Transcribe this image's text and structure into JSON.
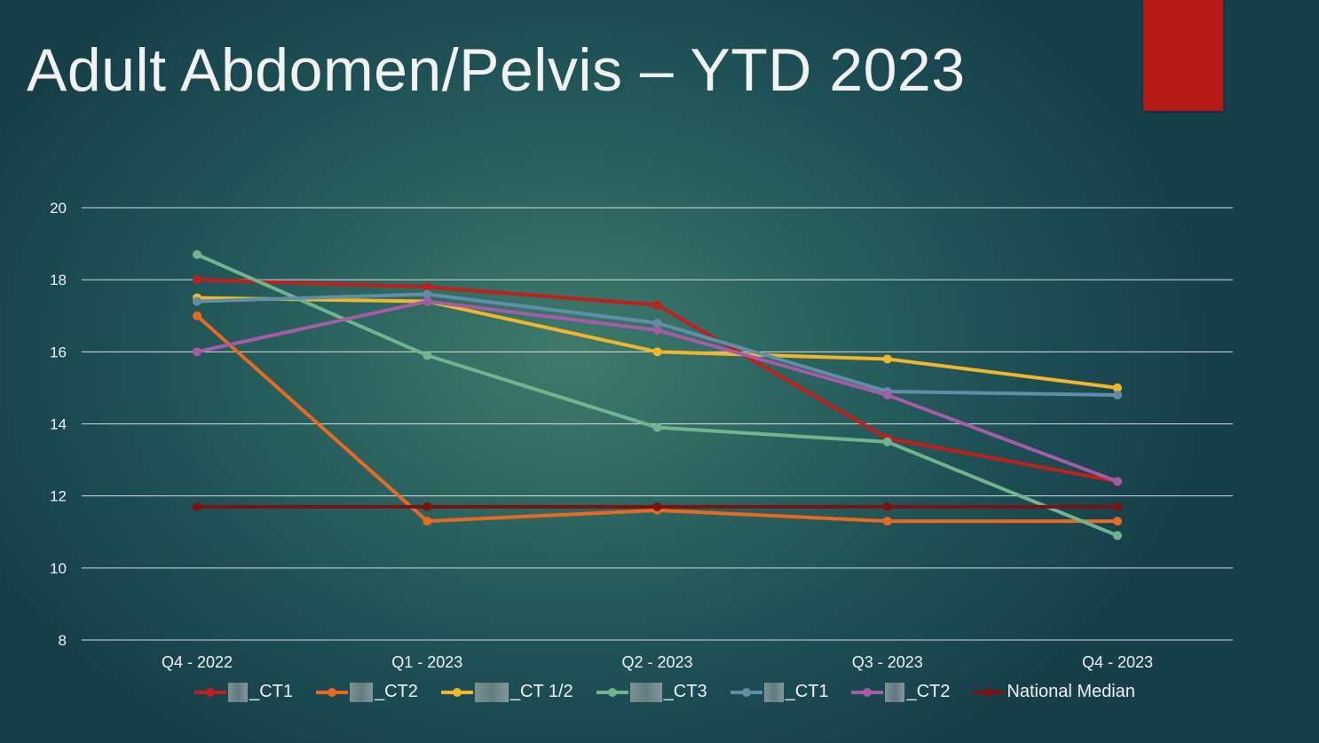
{
  "slide": {
    "title": "Adult Abdomen/Pelvis – YTD 2023",
    "accent_color": "#b31a16"
  },
  "chart_data": {
    "type": "line",
    "title": "",
    "xlabel": "",
    "ylabel": "",
    "categories": [
      "Q4 - 2022",
      "Q1 - 2023",
      "Q2 - 2023",
      "Q3 - 2023",
      "Q4 - 2023"
    ],
    "ylim": [
      8,
      20
    ],
    "yticks": [
      8,
      10,
      12,
      14,
      16,
      18,
      20
    ],
    "grid": true,
    "legend_position": "bottom",
    "series": [
      {
        "name": "_CT1",
        "redacted_prefix": true,
        "color": "#c0201c",
        "values": [
          18.0,
          17.8,
          17.3,
          13.6,
          12.4
        ]
      },
      {
        "name": "_CT2",
        "redacted_prefix": true,
        "color": "#e8691f",
        "values": [
          17.0,
          11.3,
          11.6,
          11.3,
          11.3
        ]
      },
      {
        "name": "_CT 1/2",
        "redacted_prefix": true,
        "color": "#f0b72c",
        "values": [
          17.5,
          17.4,
          16.0,
          15.8,
          15.0
        ]
      },
      {
        "name": "_CT3",
        "redacted_prefix": true,
        "color": "#72b48e",
        "values": [
          18.7,
          15.9,
          13.9,
          13.5,
          10.9
        ]
      },
      {
        "name": "_CT1",
        "redacted_prefix": true,
        "color": "#5f8fa6",
        "values": [
          17.4,
          17.6,
          16.8,
          14.9,
          14.8
        ]
      },
      {
        "name": "_CT2",
        "redacted_prefix": true,
        "color": "#a45ca6",
        "values": [
          16.0,
          17.4,
          16.6,
          14.8,
          12.4
        ]
      },
      {
        "name": "National Median",
        "redacted_prefix": false,
        "color": "#7a1210",
        "values": [
          11.7,
          11.7,
          11.7,
          11.7,
          11.7
        ]
      }
    ]
  }
}
